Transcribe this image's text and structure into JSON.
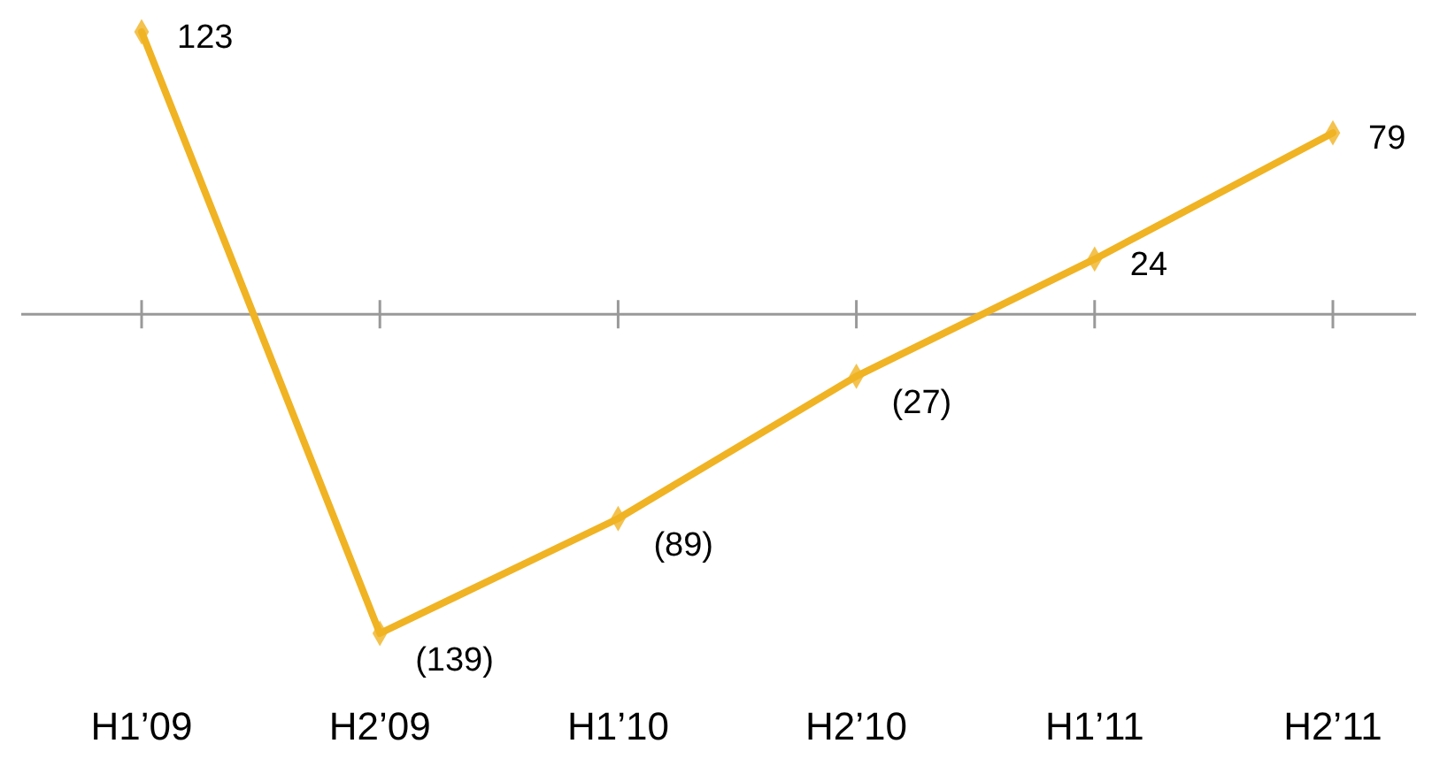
{
  "chart_data": {
    "type": "line",
    "categories": [
      "H1’09",
      "H2’09",
      "H1’10",
      "H2’10",
      "H1’11",
      "H2’11"
    ],
    "series": [
      {
        "color": "#f0b323",
        "values": [
          123,
          -139,
          -89,
          -27,
          24,
          79
        ],
        "value_labels": [
          "123",
          "(139)",
          "(89)",
          "(27)",
          "24",
          "79"
        ]
      }
    ],
    "marker": "diamond",
    "line_style": "solid"
  }
}
